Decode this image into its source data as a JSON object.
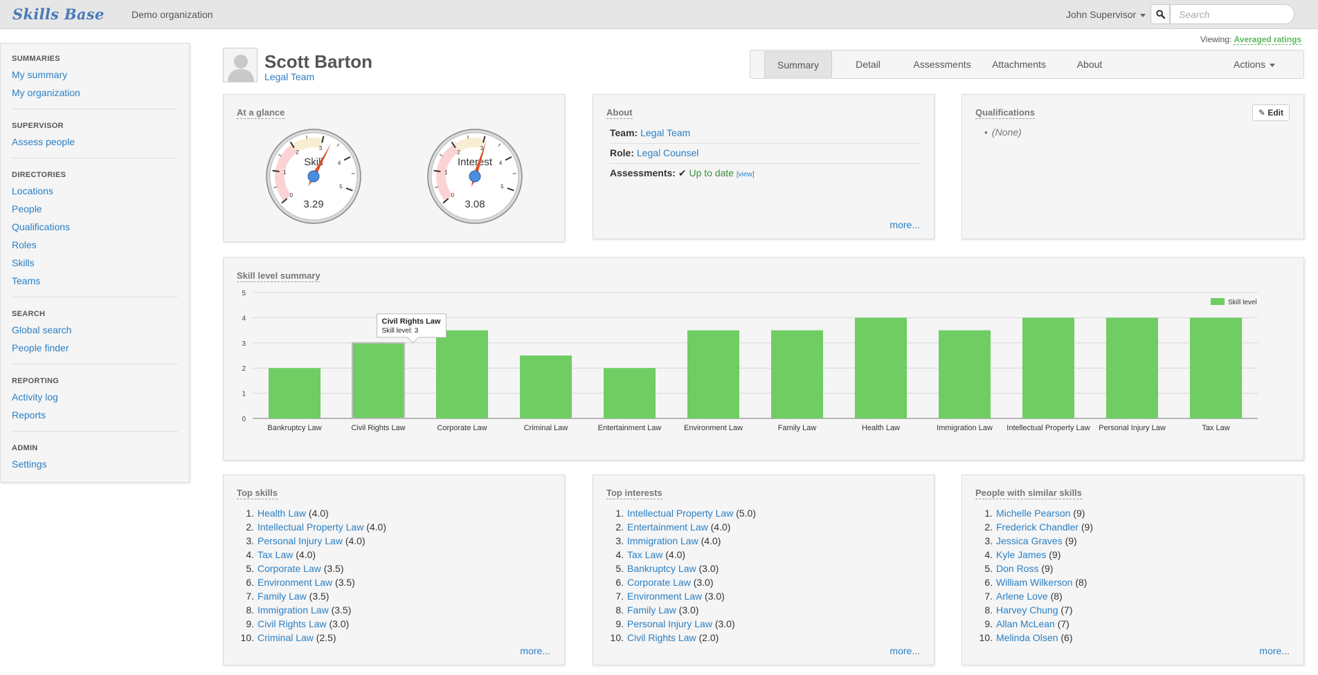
{
  "app": {
    "logo": "Skills Base",
    "organization": "Demo organization"
  },
  "topbar": {
    "user": "John Supervisor",
    "search_placeholder": "Search"
  },
  "sidebar": {
    "summaries": {
      "heading": "SUMMARIES",
      "items": [
        "My summary",
        "My organization"
      ]
    },
    "supervisor": {
      "heading": "SUPERVISOR",
      "items": [
        "Assess people"
      ]
    },
    "directories": {
      "heading": "DIRECTORIES",
      "items": [
        "Locations",
        "People",
        "Qualifications",
        "Roles",
        "Skills",
        "Teams"
      ]
    },
    "search": {
      "heading": "SEARCH",
      "items": [
        "Global search",
        "People finder"
      ]
    },
    "reporting": {
      "heading": "REPORTING",
      "items": [
        "Activity log",
        "Reports"
      ]
    },
    "admin": {
      "heading": "ADMIN",
      "items": [
        "Settings"
      ]
    }
  },
  "viewing": {
    "label": "Viewing:",
    "value": "Averaged ratings"
  },
  "profile": {
    "name": "Scott Barton",
    "team": "Legal Team"
  },
  "tabs": {
    "summary": "Summary",
    "detail": "Detail",
    "assessments": "Assessments",
    "attachments": "Attachments",
    "about": "About",
    "actions": "Actions"
  },
  "glance": {
    "title": "At a glance",
    "gauges": [
      {
        "label": "Skill",
        "value": 3.29,
        "display": "3.29"
      },
      {
        "label": "Interest",
        "value": 3.08,
        "display": "3.08"
      }
    ],
    "ticks": [
      "0",
      "1",
      "2",
      "3",
      "4",
      "5"
    ],
    "colors": {
      "low": "#fcd3d3",
      "mid": "#f6edd3",
      "needle": "#d9502a",
      "hub": "#4b8ede"
    }
  },
  "about": {
    "title": "About",
    "team_label": "Team:",
    "team_value": "Legal Team",
    "role_label": "Role:",
    "role_value": "Legal Counsel",
    "assess_label": "Assessments:",
    "assess_value": "Up to date",
    "assess_view": "[view]",
    "more": "more..."
  },
  "qualifications": {
    "title": "Qualifications",
    "edit": "Edit",
    "items": [
      "(None)"
    ]
  },
  "chart_data": {
    "type": "bar",
    "title": "Skill level summary",
    "categories": [
      "Bankruptcy Law",
      "Civil Rights Law",
      "Corporate Law",
      "Criminal Law",
      "Entertainment Law",
      "Environment Law",
      "Family Law",
      "Health Law",
      "Immigration Law",
      "Intellectual Property Law",
      "Personal Injury Law",
      "Tax Law"
    ],
    "series": [
      {
        "name": "Skill level",
        "values": [
          2,
          3,
          3.5,
          2.5,
          2,
          3.5,
          3.5,
          4,
          3.5,
          4,
          4,
          4
        ],
        "color": "#6fcd63"
      }
    ],
    "ylim": [
      0,
      5
    ],
    "yticks": [
      "0",
      "1",
      "2",
      "3",
      "4",
      "5"
    ],
    "grid": true,
    "legend": "top-right",
    "tooltip": {
      "title": "Civil Rights Law",
      "text": "Skill level: 3"
    }
  },
  "top_skills": {
    "title": "Top skills",
    "items": [
      {
        "name": "Health Law",
        "score": "(4.0)"
      },
      {
        "name": "Intellectual Property Law",
        "score": "(4.0)"
      },
      {
        "name": "Personal Injury Law",
        "score": "(4.0)"
      },
      {
        "name": "Tax Law",
        "score": "(4.0)"
      },
      {
        "name": "Corporate Law",
        "score": "(3.5)"
      },
      {
        "name": "Environment Law",
        "score": "(3.5)"
      },
      {
        "name": "Family Law",
        "score": "(3.5)"
      },
      {
        "name": "Immigration Law",
        "score": "(3.5)"
      },
      {
        "name": "Civil Rights Law",
        "score": "(3.0)"
      },
      {
        "name": "Criminal Law",
        "score": "(2.5)"
      }
    ],
    "more": "more..."
  },
  "top_interests": {
    "title": "Top interests",
    "items": [
      {
        "name": "Intellectual Property Law",
        "score": "(5.0)"
      },
      {
        "name": "Entertainment Law",
        "score": "(4.0)"
      },
      {
        "name": "Immigration Law",
        "score": "(4.0)"
      },
      {
        "name": "Tax Law",
        "score": "(4.0)"
      },
      {
        "name": "Bankruptcy Law",
        "score": "(3.0)"
      },
      {
        "name": "Corporate Law",
        "score": "(3.0)"
      },
      {
        "name": "Environment Law",
        "score": "(3.0)"
      },
      {
        "name": "Family Law",
        "score": "(3.0)"
      },
      {
        "name": "Personal Injury Law",
        "score": "(3.0)"
      },
      {
        "name": "Civil Rights Law",
        "score": "(2.0)"
      }
    ],
    "more": "more..."
  },
  "similar_people": {
    "title": "People with similar skills",
    "items": [
      {
        "name": "Michelle Pearson",
        "score": "(9)"
      },
      {
        "name": "Frederick Chandler",
        "score": "(9)"
      },
      {
        "name": "Jessica Graves",
        "score": "(9)"
      },
      {
        "name": "Kyle James",
        "score": "(9)"
      },
      {
        "name": "Don Ross",
        "score": "(9)"
      },
      {
        "name": "William Wilkerson",
        "score": "(8)"
      },
      {
        "name": "Arlene Love",
        "score": "(8)"
      },
      {
        "name": "Harvey Chung",
        "score": "(7)"
      },
      {
        "name": "Allan McLean",
        "score": "(7)"
      },
      {
        "name": "Melinda Olsen",
        "score": "(6)"
      }
    ],
    "more": "more..."
  }
}
